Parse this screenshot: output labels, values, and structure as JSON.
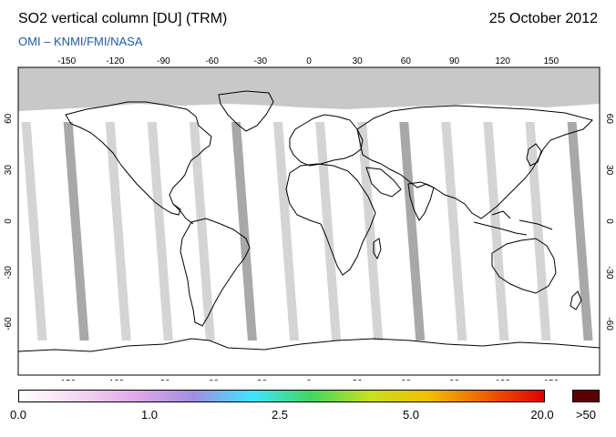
{
  "header": {
    "title": "SO2 vertical column [DU] (TRM)",
    "date": "25 October 2012",
    "subtitle": "OMI  –  KNMI/FMI/NASA"
  },
  "map": {
    "projection": "equirectangular",
    "lon_ticks": [
      "-150",
      "-120",
      "-90",
      "-60",
      "-30",
      "0",
      "30",
      "60",
      "90",
      "120",
      "150"
    ],
    "lat_ticks": [
      "60",
      "30",
      "0",
      "-30",
      "-60"
    ],
    "colors": {
      "ocean": "#ffffff",
      "no_data": "#c8c8c8",
      "orbit_light": "#d4d4d4",
      "orbit_dark": "#a8a8a8",
      "coast": "#000000"
    }
  },
  "colorbar": {
    "tick_labels": [
      "0.0",
      "1.0",
      "2.5",
      "5.0",
      "20.0"
    ],
    "overflow_label": ">50",
    "overflow_color": "#5a0000",
    "gradient_colors": [
      "#ffffff",
      "#f4d8f0",
      "#e0a8e8",
      "#9f8fe0",
      "#3fe4ff",
      "#3fd860",
      "#c6e020",
      "#f0c000",
      "#f06000",
      "#e00000"
    ]
  }
}
